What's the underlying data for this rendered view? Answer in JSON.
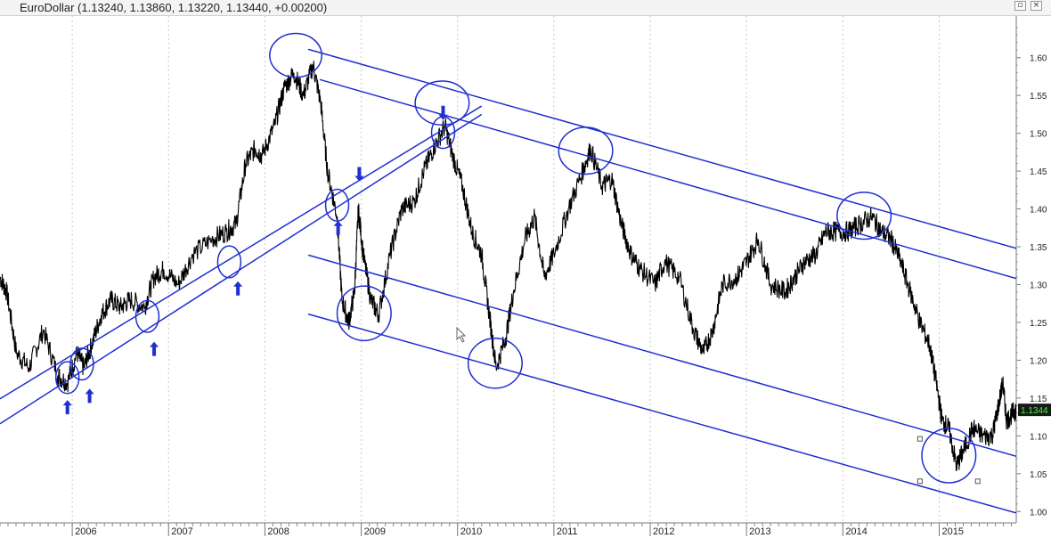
{
  "header": {
    "instrument": "EuroDollar",
    "quote": "(1.13240, 1.13860, 1.13220, 1.13440, +0.00200)",
    "restore_icon": "restore-icon",
    "close_icon": "close-icon"
  },
  "price_label": "1.1344",
  "colors": {
    "price_line": "#000000",
    "annotation": "#1f2fd0",
    "price_box": "#1a1a1a",
    "price_text": "#33ff33",
    "grid": "#c8c8c8"
  },
  "chart_data": {
    "type": "line",
    "title": "",
    "xlabel": "",
    "ylabel": "",
    "xlim": [
      2005.25,
      2015.8
    ],
    "ylim": [
      0.985,
      1.655
    ],
    "grid": "vertical dotted at year boundaries",
    "x_tick_labels": [
      "2006",
      "2007",
      "2008",
      "2009",
      "2010",
      "2011",
      "2012",
      "2013",
      "2014",
      "2015"
    ],
    "y_tick_labels": [
      "1.60",
      "1.55",
      "1.50",
      "1.45",
      "1.40",
      "1.35",
      "1.30",
      "1.25",
      "1.20",
      "1.15",
      "1.10",
      "1.05",
      "1.00"
    ],
    "y_ticks": [
      1.6,
      1.55,
      1.5,
      1.45,
      1.4,
      1.35,
      1.3,
      1.25,
      1.2,
      1.15,
      1.1,
      1.05,
      1.0
    ],
    "last_price": 1.1344,
    "series": [
      {
        "points": [
          [
            2005.25,
            1.31
          ],
          [
            2005.32,
            1.29
          ],
          [
            2005.42,
            1.21
          ],
          [
            2005.55,
            1.19
          ],
          [
            2005.7,
            1.24
          ],
          [
            2005.85,
            1.18
          ],
          [
            2005.95,
            1.17
          ],
          [
            2006.05,
            1.21
          ],
          [
            2006.12,
            1.19
          ],
          [
            2006.2,
            1.22
          ],
          [
            2006.3,
            1.26
          ],
          [
            2006.4,
            1.28
          ],
          [
            2006.5,
            1.27
          ],
          [
            2006.6,
            1.28
          ],
          [
            2006.75,
            1.27
          ],
          [
            2006.85,
            1.31
          ],
          [
            2006.95,
            1.32
          ],
          [
            2007.1,
            1.3
          ],
          [
            2007.25,
            1.34
          ],
          [
            2007.45,
            1.36
          ],
          [
            2007.6,
            1.37
          ],
          [
            2007.7,
            1.38
          ],
          [
            2007.8,
            1.46
          ],
          [
            2007.9,
            1.48
          ],
          [
            2007.97,
            1.47
          ],
          [
            2008.1,
            1.51
          ],
          [
            2008.2,
            1.56
          ],
          [
            2008.3,
            1.58
          ],
          [
            2008.4,
            1.55
          ],
          [
            2008.5,
            1.59
          ],
          [
            2008.58,
            1.54
          ],
          [
            2008.65,
            1.45
          ],
          [
            2008.75,
            1.39
          ],
          [
            2008.8,
            1.28
          ],
          [
            2008.87,
            1.25
          ],
          [
            2008.93,
            1.29
          ],
          [
            2008.97,
            1.4
          ],
          [
            2009.02,
            1.34
          ],
          [
            2009.1,
            1.28
          ],
          [
            2009.18,
            1.26
          ],
          [
            2009.3,
            1.34
          ],
          [
            2009.42,
            1.4
          ],
          [
            2009.55,
            1.41
          ],
          [
            2009.65,
            1.45
          ],
          [
            2009.75,
            1.48
          ],
          [
            2009.87,
            1.51
          ],
          [
            2009.95,
            1.47
          ],
          [
            2010.05,
            1.43
          ],
          [
            2010.15,
            1.37
          ],
          [
            2010.25,
            1.34
          ],
          [
            2010.33,
            1.26
          ],
          [
            2010.4,
            1.19
          ],
          [
            2010.5,
            1.23
          ],
          [
            2010.58,
            1.29
          ],
          [
            2010.7,
            1.36
          ],
          [
            2010.8,
            1.39
          ],
          [
            2010.9,
            1.31
          ],
          [
            2011.0,
            1.34
          ],
          [
            2011.15,
            1.4
          ],
          [
            2011.3,
            1.45
          ],
          [
            2011.38,
            1.48
          ],
          [
            2011.5,
            1.43
          ],
          [
            2011.6,
            1.44
          ],
          [
            2011.7,
            1.38
          ],
          [
            2011.8,
            1.34
          ],
          [
            2011.9,
            1.32
          ],
          [
            2012.05,
            1.3
          ],
          [
            2012.15,
            1.33
          ],
          [
            2012.3,
            1.31
          ],
          [
            2012.45,
            1.24
          ],
          [
            2012.55,
            1.21
          ],
          [
            2012.65,
            1.24
          ],
          [
            2012.75,
            1.3
          ],
          [
            2012.9,
            1.31
          ],
          [
            2013.0,
            1.33
          ],
          [
            2013.12,
            1.36
          ],
          [
            2013.25,
            1.3
          ],
          [
            2013.4,
            1.29
          ],
          [
            2013.5,
            1.31
          ],
          [
            2013.6,
            1.33
          ],
          [
            2013.72,
            1.34
          ],
          [
            2013.82,
            1.37
          ],
          [
            2013.92,
            1.37
          ],
          [
            2014.05,
            1.37
          ],
          [
            2014.18,
            1.38
          ],
          [
            2014.3,
            1.39
          ],
          [
            2014.4,
            1.37
          ],
          [
            2014.5,
            1.36
          ],
          [
            2014.6,
            1.33
          ],
          [
            2014.7,
            1.29
          ],
          [
            2014.8,
            1.25
          ],
          [
            2014.9,
            1.22
          ],
          [
            2014.97,
            1.17
          ],
          [
            2015.03,
            1.12
          ],
          [
            2015.1,
            1.11
          ],
          [
            2015.18,
            1.06
          ],
          [
            2015.25,
            1.08
          ],
          [
            2015.35,
            1.11
          ],
          [
            2015.45,
            1.1
          ],
          [
            2015.55,
            1.1
          ],
          [
            2015.6,
            1.13
          ],
          [
            2015.66,
            1.17
          ],
          [
            2015.7,
            1.12
          ],
          [
            2015.76,
            1.13
          ],
          [
            2015.8,
            1.134
          ]
        ]
      }
    ],
    "trend_channels": [
      {
        "start": [
          2005.25,
          1.149
        ],
        "end": [
          2010.25,
          1.536
        ]
      },
      {
        "start": [
          2005.25,
          1.116
        ],
        "end": [
          2010.25,
          1.525
        ]
      },
      {
        "start": [
          2008.45,
          1.611
        ],
        "end": [
          2015.8,
          1.348
        ]
      },
      {
        "start": [
          2008.57,
          1.571
        ],
        "end": [
          2015.8,
          1.308
        ]
      },
      {
        "start": [
          2008.45,
          1.339
        ],
        "end": [
          2015.8,
          1.073
        ]
      },
      {
        "start": [
          2008.45,
          1.261
        ],
        "end": [
          2015.8,
          0.998
        ]
      }
    ],
    "ellipses": [
      {
        "center": [
          2005.95,
          1.177
        ],
        "rx": 0.12,
        "ry": 0.021
      },
      {
        "center": [
          2006.1,
          1.195
        ],
        "rx": 0.12,
        "ry": 0.021
      },
      {
        "center": [
          2006.78,
          1.258
        ],
        "rx": 0.12,
        "ry": 0.021
      },
      {
        "center": [
          2007.63,
          1.33
        ],
        "rx": 0.12,
        "ry": 0.021
      },
      {
        "center": [
          2008.32,
          1.603
        ],
        "rx": 0.27,
        "ry": 0.029
      },
      {
        "center": [
          2008.75,
          1.405
        ],
        "rx": 0.12,
        "ry": 0.021
      },
      {
        "center": [
          2009.03,
          1.262
        ],
        "rx": 0.28,
        "ry": 0.036
      },
      {
        "center": [
          2009.84,
          1.54
        ],
        "rx": 0.28,
        "ry": 0.029
      },
      {
        "center": [
          2009.85,
          1.501
        ],
        "rx": 0.12,
        "ry": 0.021
      },
      {
        "center": [
          2010.39,
          1.196
        ],
        "rx": 0.28,
        "ry": 0.033
      },
      {
        "center": [
          2011.33,
          1.477
        ],
        "rx": 0.28,
        "ry": 0.031
      },
      {
        "center": [
          2014.22,
          1.391
        ],
        "rx": 0.28,
        "ry": 0.031
      },
      {
        "center": [
          2015.1,
          1.074
        ],
        "rx": 0.28,
        "ry": 0.036
      }
    ],
    "up_arrows": [
      [
        2005.95,
        1.138
      ],
      [
        2006.18,
        1.153
      ],
      [
        2006.85,
        1.215
      ],
      [
        2007.72,
        1.295
      ],
      [
        2008.76,
        1.375
      ]
    ],
    "down_arrows": [
      [
        2008.98,
        1.446
      ],
      [
        2009.85,
        1.527
      ]
    ],
    "selection_handles": [
      [
        2014.8,
        1.096
      ],
      [
        2014.8,
        1.04
      ],
      [
        2015.4,
        1.04
      ]
    ]
  }
}
